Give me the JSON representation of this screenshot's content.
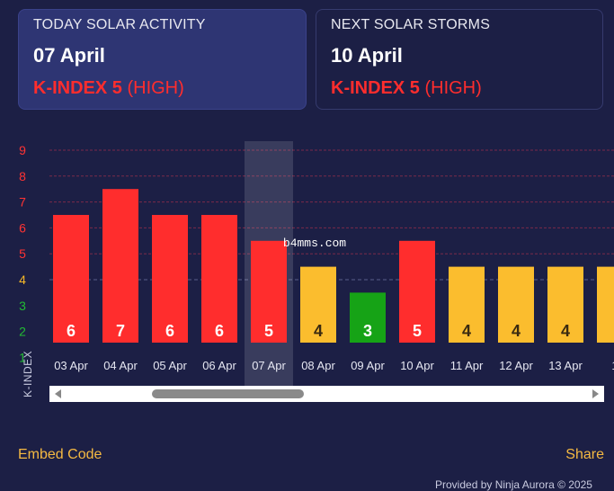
{
  "today": {
    "heading": "TODAY SOLAR ACTIVITY",
    "date": "07 April",
    "k_label": "K-INDEX 5",
    "k_level": "(HIGH)"
  },
  "next": {
    "heading": "NEXT SOLAR STORMS",
    "date": "10 April",
    "k_label": "K-INDEX 5",
    "k_level": "(HIGH)"
  },
  "chart_data": {
    "type": "bar",
    "ylabel": "K-INDEX",
    "ylim": [
      1,
      9
    ],
    "y_ticks": [
      "1",
      "2",
      "3",
      "4",
      "5",
      "6",
      "7",
      "8",
      "9"
    ],
    "y_tick_colors": {
      "1": "#22bb33",
      "2": "#22bb33",
      "3": "#22bb33",
      "4": "#f7b928",
      "5": "#ff3333",
      "6": "#ff3333",
      "7": "#ff3333",
      "8": "#ff3333",
      "9": "#ff3333"
    },
    "categories": [
      "03 Apr",
      "04 Apr",
      "05 Apr",
      "06 Apr",
      "07 Apr",
      "08 Apr",
      "09 Apr",
      "10 Apr",
      "11 Apr",
      "12 Apr",
      "13 Apr",
      "1"
    ],
    "values": [
      6,
      7,
      6,
      6,
      5,
      4,
      3,
      5,
      4,
      4,
      4,
      4
    ],
    "value_labels": [
      "6",
      "7",
      "6",
      "6",
      "5",
      "4",
      "3",
      "5",
      "4",
      "4",
      "4",
      ""
    ],
    "highlight_index": 4,
    "colors": {
      "high": "#ff2d2d",
      "moderate": "#fbbd2e",
      "low": "#16a316",
      "highlight": "rgba(255,255,255,0.13)",
      "grid_red": "#7a2a4a",
      "grid_dashed": "#5a5f8a"
    },
    "grid": true,
    "watermark": "b4mms.com"
  },
  "footer": {
    "embed_label": "Embed Code",
    "share_label": "Share",
    "credit": "Provided by Ninja Aurora © 2025"
  }
}
